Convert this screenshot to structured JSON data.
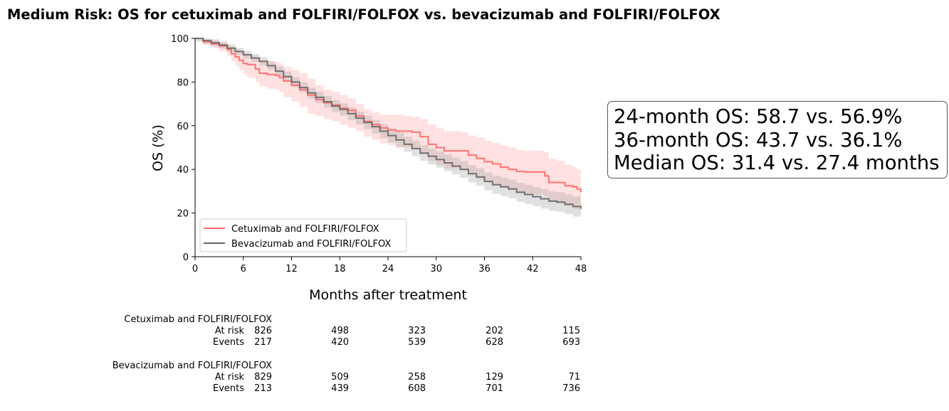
{
  "chart_data": {
    "type": "line",
    "title": "Medium Risk: OS for cetuximab and FOLFIRI/FOLFOX vs. bevacizumab and FOLFIRI/FOLFOX",
    "xlabel": "Months after treatment",
    "ylabel": "OS (%)",
    "xlim": [
      0,
      48
    ],
    "ylim": [
      0,
      100
    ],
    "xticks": [
      0,
      6,
      12,
      18,
      24,
      30,
      36,
      42,
      48
    ],
    "yticks": [
      0,
      20,
      40,
      60,
      80,
      100
    ],
    "grid": false,
    "legend_position": "lower-left",
    "series": [
      {
        "name": "Cetuximab and FOLFIRI/FOLFOX",
        "color": "#ff6b6b",
        "step": true,
        "x": [
          0,
          1,
          2,
          3,
          4,
          4.5,
          5,
          5.5,
          6,
          6.5,
          7.5,
          8,
          9,
          10,
          10.5,
          11,
          12,
          13,
          14,
          15,
          16,
          17,
          18,
          19,
          20,
          21,
          22,
          23,
          24,
          25,
          26,
          27,
          28,
          29,
          30,
          31,
          33,
          34,
          35,
          36,
          37,
          38,
          39,
          40,
          41,
          42,
          43,
          43.5,
          44,
          45,
          46,
          47,
          47.5,
          48
        ],
        "y": [
          100,
          98.5,
          97.5,
          96.5,
          95,
          93,
          91.5,
          90,
          88.5,
          88,
          86,
          84,
          83.5,
          83,
          82,
          80.5,
          78.5,
          76.5,
          74,
          72,
          70.5,
          69.5,
          68,
          67,
          64.5,
          62,
          60.5,
          59,
          58,
          57.5,
          57.5,
          57,
          55,
          51.5,
          50,
          48.5,
          48.5,
          46.5,
          45,
          43.5,
          42.5,
          41,
          40,
          39,
          38.8,
          38.8,
          38.8,
          37,
          34,
          34,
          32.5,
          32,
          31,
          29.5
        ],
        "ci_upper": [
          100,
          99.5,
          99,
          98,
          97,
          96,
          95,
          94,
          93,
          92,
          91,
          90,
          89.5,
          89,
          88.5,
          87,
          85.5,
          84,
          81.5,
          78.5,
          76.5,
          75.5,
          74,
          72.5,
          70,
          67.5,
          66,
          65,
          65,
          65,
          64.5,
          64,
          63,
          60.5,
          59,
          57.5,
          57,
          55.5,
          54.5,
          53,
          52,
          51,
          50,
          49,
          48.5,
          48.5,
          48.5,
          48,
          45,
          44,
          42,
          41,
          40,
          38.5
        ],
        "ci_lower": [
          100,
          97,
          95.5,
          94,
          92,
          89.5,
          87.5,
          85.5,
          83.5,
          82,
          80,
          78,
          77,
          76.5,
          75.5,
          73,
          71,
          68.5,
          65.5,
          64.5,
          63,
          62,
          60.5,
          59,
          57.5,
          55,
          53.5,
          52,
          51,
          50,
          50,
          49.5,
          47,
          44,
          42,
          40.5,
          39.5,
          37.5,
          35.5,
          34,
          33,
          31.5,
          30.5,
          29.5,
          29,
          28.5,
          28.5,
          27.5,
          25,
          24.5,
          23,
          22,
          21.5,
          20.5
        ]
      },
      {
        "name": "Bevacizumab and FOLFIRI/FOLFOX",
        "color": "#666666",
        "step": true,
        "x": [
          0,
          1,
          2,
          3,
          4,
          5,
          6,
          7,
          8,
          9,
          10,
          11,
          12,
          13,
          14,
          15,
          16,
          17,
          18,
          19,
          20,
          21,
          22,
          23,
          24,
          25,
          26,
          27,
          28,
          29,
          30,
          31,
          32,
          33,
          34,
          35,
          36,
          37,
          38,
          39,
          40,
          41,
          42,
          43,
          44,
          45,
          46,
          47,
          48
        ],
        "y": [
          100,
          99,
          98,
          97,
          95.5,
          94,
          92.5,
          91,
          89.5,
          87.5,
          85,
          82.5,
          80,
          77.5,
          75,
          73,
          71,
          69,
          67.5,
          65.5,
          63.5,
          61.5,
          59.5,
          57.5,
          55.5,
          53.5,
          51.5,
          49.5,
          47.5,
          46,
          44.5,
          43,
          41.5,
          40,
          38,
          36.5,
          34.5,
          33,
          32,
          31,
          29.5,
          28.5,
          27.5,
          26.5,
          25.5,
          25,
          24,
          23,
          22
        ]
      }
    ],
    "summary": [
      "24-month OS: 58.7 vs. 56.9%",
      "36-month OS: 43.7 vs. 36.1%",
      "Median OS: 31.4 vs. 27.4 months"
    ],
    "risk_table": {
      "groups": [
        {
          "name": "Cetuximab and FOLFIRI/FOLFOX",
          "rows": [
            {
              "label": "At risk",
              "values": [
                "826",
                "498",
                "323",
                "202",
                "115"
              ]
            },
            {
              "label": "Events",
              "values": [
                "217",
                "420",
                "539",
                "628",
                "693"
              ]
            }
          ]
        },
        {
          "name": "Bevacizumab and FOLFIRI/FOLFOX",
          "rows": [
            {
              "label": "At risk",
              "values": [
                "829",
                "509",
                "258",
                "129",
                "71"
              ]
            },
            {
              "label": "Events",
              "values": [
                "213",
                "439",
                "608",
                "701",
                "736"
              ]
            }
          ]
        }
      ]
    }
  }
}
